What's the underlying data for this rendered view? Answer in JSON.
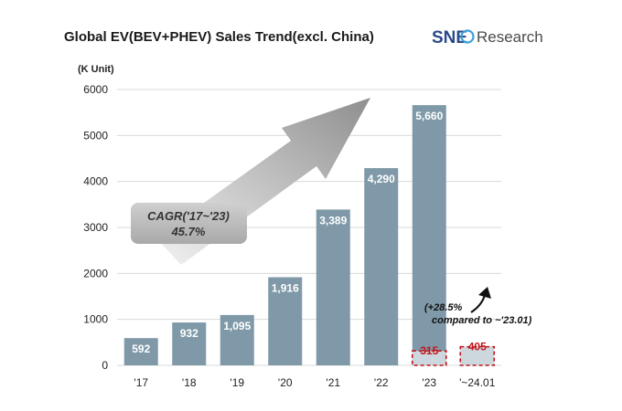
{
  "header": {
    "title": "Global EV(BEV+PHEV)  Sales Trend(excl. China)",
    "logo_prefix": "SNE",
    "logo_suffix": "Research"
  },
  "chart_data": {
    "type": "bar",
    "unit_label": "(K Unit)",
    "categories": [
      "'17",
      "'18",
      "'19",
      "'20",
      "'21",
      "'22",
      "'23",
      "'~24.01"
    ],
    "values": [
      592,
      932,
      1095,
      1916,
      3389,
      4290,
      5660,
      null
    ],
    "value_labels": [
      "592",
      "932",
      "1,095",
      "1,916",
      "3,389",
      "4,290",
      "5,660",
      ""
    ],
    "highlight_segments": [
      {
        "category": "'23",
        "value": 315,
        "label": "315"
      },
      {
        "category": "'~24.01",
        "value": 405,
        "label": "405"
      }
    ],
    "ylim": [
      0,
      6000
    ],
    "yticks": [
      0,
      1000,
      2000,
      3000,
      4000,
      5000,
      6000
    ],
    "grid": true,
    "annotations": {
      "cagr_line1": "CAGR('17~'23)",
      "cagr_line2": "45.7%",
      "growth_line1": "(+28.5%",
      "growth_line2": "compared to ~'23.01)"
    },
    "colors": {
      "bar": "#7f99a8",
      "highlight_fill": "#cdd7de",
      "highlight_border": "#c0161c",
      "highlight_text": "#c0161c",
      "grid": "#d9d9d9"
    }
  }
}
